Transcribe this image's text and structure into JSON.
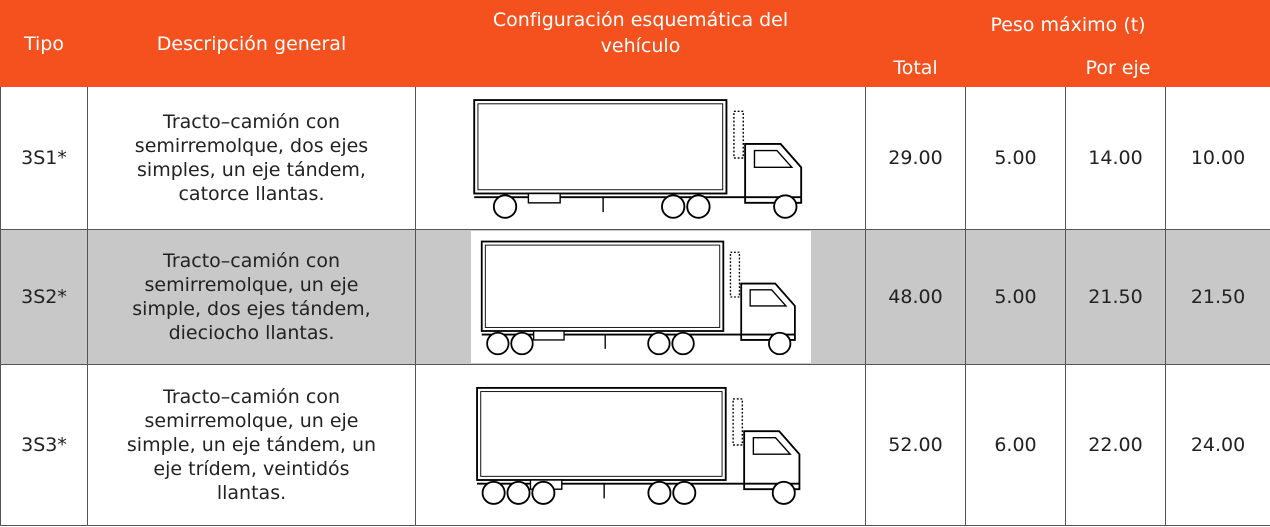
{
  "table": {
    "headers": {
      "tipo": "Tipo",
      "descripcion": "Descripción general",
      "configuracion": [
        "Configuración esquemática del",
        "vehículo"
      ],
      "peso": "Peso máximo (t)",
      "total": "Total",
      "por_eje": "Por eje"
    },
    "rows": [
      {
        "tipo": "3S1*",
        "descripcion": [
          "Tracto–camión con",
          "semirremolque, dos ejes",
          "simples, un eje tándem,",
          "catorce llantas."
        ],
        "total": "29.00",
        "ejes": [
          "5.00",
          "14.00",
          "10.00"
        ]
      },
      {
        "tipo": "3S2*",
        "descripcion": [
          "Tracto–camión con",
          "semirremolque, un eje",
          "simple, dos ejes tándem,",
          "dieciocho llantas."
        ],
        "total": "48.00",
        "ejes": [
          "5.00",
          "21.50",
          "21.50"
        ]
      },
      {
        "tipo": "3S3*",
        "descripcion": [
          "Tracto–camión con",
          "semirremolque, un eje",
          "simple, un eje tándem, un",
          "eje trídem, veintidós",
          "llantas."
        ],
        "total": "52.00",
        "ejes": [
          "6.00",
          "22.00",
          "24.00"
        ]
      }
    ]
  }
}
